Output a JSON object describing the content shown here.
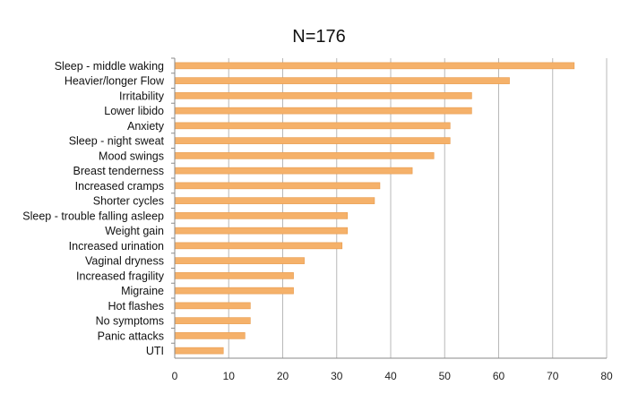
{
  "chart_data": {
    "type": "bar",
    "orientation": "horizontal",
    "title": "N=176",
    "xlabel": "",
    "ylabel": "",
    "xlim": [
      0,
      80
    ],
    "x_ticks": [
      0,
      10,
      20,
      30,
      40,
      50,
      60,
      70,
      80
    ],
    "grid": true,
    "legend": "none",
    "bar_color": "#f5b16a",
    "bar_edge_color": "#e89a4a",
    "categories": [
      "Sleep - middle waking",
      "Heavier/longer Flow",
      "Irritability",
      "Lower libido",
      "Anxiety",
      "Sleep - night sweat",
      "Mood swings",
      "Breast tenderness",
      "Increased cramps",
      "Shorter cycles",
      "Sleep - trouble falling asleep",
      "Weight gain",
      "Increased urination",
      "Vaginal dryness",
      "Increased fragility",
      "Migraine",
      "Hot flashes",
      "No symptoms",
      "Panic attacks",
      "UTI"
    ],
    "values": [
      74,
      62,
      55,
      55,
      51,
      51,
      48,
      44,
      38,
      37,
      32,
      32,
      31,
      24,
      22,
      22,
      14,
      14,
      13,
      9
    ]
  }
}
